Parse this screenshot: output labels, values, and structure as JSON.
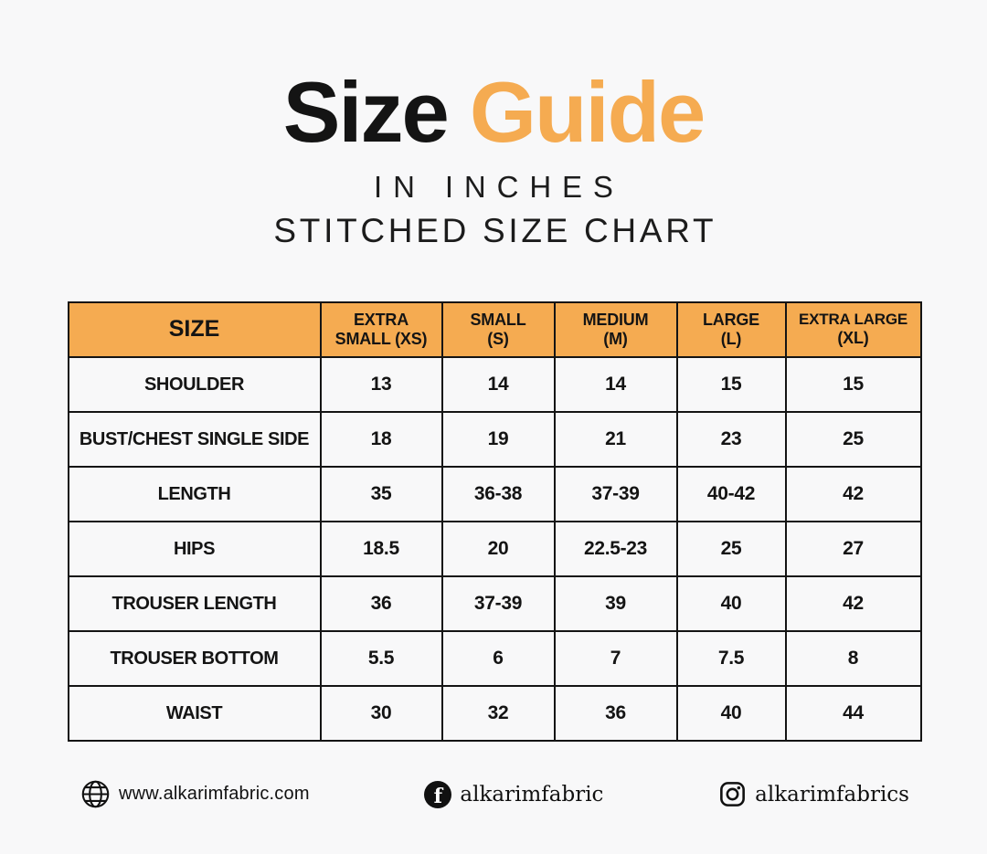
{
  "colors": {
    "accent_orange": "#f5ab51",
    "background": "#f8f8f9",
    "table_border": "#141414",
    "text": "#141414"
  },
  "header": {
    "title_primary": "Size",
    "title_accent": "Guide",
    "subtitle_line1": "IN INCHES",
    "subtitle_line2": "STITCHED SIZE CHART"
  },
  "size_table": {
    "corner_label": "SIZE",
    "columns": [
      {
        "label": "EXTRA SMALL (XS)",
        "lines": [
          "EXTRA",
          "SMALL (XS)"
        ],
        "small": false
      },
      {
        "label": "SMALL (S)",
        "lines": [
          "SMALL",
          "(S)"
        ],
        "small": false
      },
      {
        "label": "MEDIUM (M)",
        "lines": [
          "MEDIUM",
          "(M)"
        ],
        "small": false
      },
      {
        "label": "LARGE (L)",
        "lines": [
          "LARGE",
          "(L)"
        ],
        "small": false
      },
      {
        "label": "EXTRA LARGE (XL)",
        "lines": [
          "EXTRA LARGE",
          "(XL)"
        ],
        "small": true
      }
    ],
    "rows": [
      {
        "label": "SHOULDER",
        "values": [
          "13",
          "14",
          "14",
          "15",
          "15"
        ]
      },
      {
        "label": "BUST/CHEST SINGLE SIDE",
        "values": [
          "18",
          "19",
          "21",
          "23",
          "25"
        ]
      },
      {
        "label": "LENGTH",
        "values": [
          "35",
          "36-38",
          "37-39",
          "40-42",
          "42"
        ]
      },
      {
        "label": "HIPS",
        "values": [
          "18.5",
          "20",
          "22.5-23",
          "25",
          "27"
        ]
      },
      {
        "label": "TROUSER LENGTH",
        "values": [
          "36",
          "37-39",
          "39",
          "40",
          "42"
        ]
      },
      {
        "label": "TROUSER BOTTOM",
        "values": [
          "5.5",
          "6",
          "7",
          "7.5",
          "8"
        ]
      },
      {
        "label": "WAIST",
        "values": [
          "30",
          "32",
          "36",
          "40",
          "44"
        ]
      }
    ]
  },
  "chart_data": {
    "type": "table",
    "title": "Size Guide in inches — Stitched Size Chart",
    "columns": [
      "SIZE",
      "EXTRA SMALL (XS)",
      "SMALL (S)",
      "MEDIUM (M)",
      "LARGE (L)",
      "EXTRA LARGE (XL)"
    ],
    "rows": [
      [
        "SHOULDER",
        "13",
        "14",
        "14",
        "15",
        "15"
      ],
      [
        "BUST/CHEST SINGLE SIDE",
        "18",
        "19",
        "21",
        "23",
        "25"
      ],
      [
        "LENGTH",
        "35",
        "36-38",
        "37-39",
        "40-42",
        "42"
      ],
      [
        "HIPS",
        "18.5",
        "20",
        "22.5-23",
        "25",
        "27"
      ],
      [
        "TROUSER LENGTH",
        "36",
        "37-39",
        "39",
        "40",
        "42"
      ],
      [
        "TROUSER BOTTOM",
        "5.5",
        "6",
        "7",
        "7.5",
        "8"
      ],
      [
        "WAIST",
        "30",
        "32",
        "36",
        "40",
        "44"
      ]
    ]
  },
  "footer": {
    "website": "www.alkarimfabric.com",
    "facebook_handle": "alkarimfabric",
    "instagram_handle": "alkarimfabrics",
    "facebook_glyph": "f"
  }
}
